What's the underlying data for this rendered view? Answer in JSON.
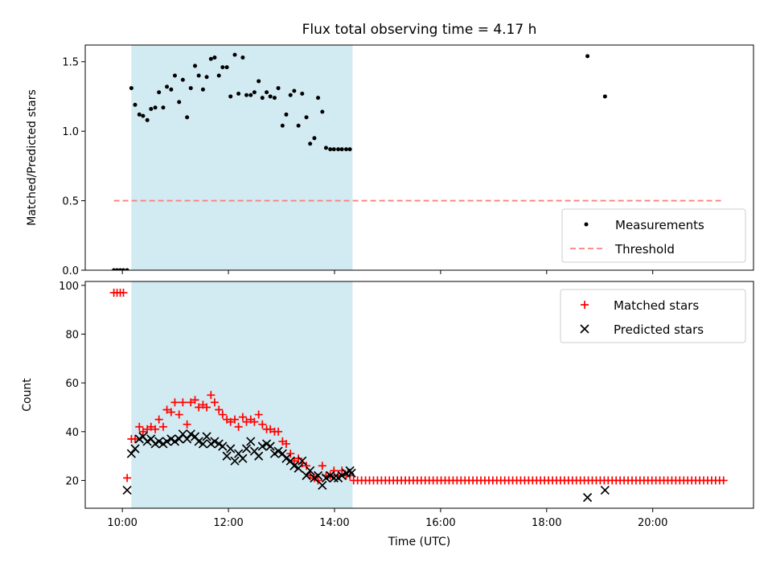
{
  "chart_data": [
    {
      "type": "scatter",
      "title": "Flux total observing time = 4.17 h",
      "xlabel": "",
      "ylabel": "Matched/Predicted stars",
      "ylim": [
        0,
        1.62
      ],
      "yticks": [
        0.0,
        0.5,
        1.0,
        1.5
      ],
      "ytick_labels": [
        "0.0",
        "0.5",
        "1.0",
        "1.5"
      ],
      "xlim_hours": [
        9.3,
        21.9
      ],
      "x_unit": "hours UTC",
      "shaded_interval_hours": [
        10.17,
        14.34
      ],
      "shade_color": "#add8e6",
      "legend_position": "lower-right",
      "series": [
        {
          "name": "Measurements",
          "marker": "dot",
          "color": "#000000",
          "x": [
            9.84,
            9.9,
            9.96,
            10.02,
            10.09,
            10.17,
            10.24,
            10.32,
            10.39,
            10.47,
            10.54,
            10.62,
            10.69,
            10.77,
            10.84,
            10.92,
            10.99,
            11.07,
            11.14,
            11.22,
            11.29,
            11.37,
            11.44,
            11.52,
            11.59,
            11.67,
            11.74,
            11.82,
            11.89,
            11.97,
            12.04,
            12.12,
            12.19,
            12.27,
            12.34,
            12.42,
            12.49,
            12.57,
            12.64,
            12.72,
            12.79,
            12.87,
            12.94,
            13.02,
            13.09,
            13.17,
            13.24,
            13.32,
            13.39,
            13.47,
            13.54,
            13.62,
            13.69,
            13.77,
            13.84,
            13.92,
            13.99,
            14.07,
            14.14,
            14.22,
            14.29,
            18.77,
            19.1
          ],
          "y": [
            0,
            0,
            0,
            0,
            0,
            1.31,
            1.19,
            1.12,
            1.11,
            1.08,
            1.16,
            1.17,
            1.28,
            1.17,
            1.32,
            1.3,
            1.4,
            1.21,
            1.37,
            1.1,
            1.31,
            1.47,
            1.4,
            1.3,
            1.39,
            1.52,
            1.53,
            1.4,
            1.46,
            1.46,
            1.25,
            1.55,
            1.27,
            1.53,
            1.26,
            1.26,
            1.28,
            1.36,
            1.24,
            1.28,
            1.25,
            1.24,
            1.31,
            1.04,
            1.12,
            1.26,
            1.29,
            1.04,
            1.27,
            1.1,
            0.91,
            0.95,
            1.24,
            1.14,
            0.88,
            0.87,
            0.87,
            0.87,
            0.87,
            0.87,
            0.87,
            1.54,
            1.25
          ]
        },
        {
          "name": "Threshold",
          "marker": "dashed-line",
          "color": "#ff7f7f",
          "x": [
            9.84,
            21.34
          ],
          "y": [
            0.5,
            0.5
          ]
        }
      ]
    },
    {
      "type": "scatter",
      "title": "",
      "xlabel": "Time (UTC)",
      "ylabel": "Count",
      "ylim": [
        8.6,
        101.6
      ],
      "yticks": [
        20,
        40,
        60,
        80,
        100
      ],
      "ytick_labels": [
        "20",
        "40",
        "60",
        "80",
        "100"
      ],
      "xlim_hours": [
        9.3,
        21.9
      ],
      "xticks_hours": [
        10,
        12,
        14,
        16,
        18,
        20
      ],
      "xtick_labels": [
        "10:00",
        "12:00",
        "14:00",
        "16:00",
        "18:00",
        "20:00"
      ],
      "shaded_interval_hours": [
        10.17,
        14.34
      ],
      "shade_color": "#add8e6",
      "legend_position": "upper-right",
      "series": [
        {
          "name": "Matched stars",
          "marker": "plus",
          "color": "#ff0000",
          "x": [
            9.84,
            9.9,
            9.96,
            10.02,
            10.09,
            10.17,
            10.24,
            10.32,
            10.39,
            10.47,
            10.54,
            10.62,
            10.69,
            10.77,
            10.84,
            10.92,
            10.99,
            11.07,
            11.14,
            11.22,
            11.29,
            11.37,
            11.44,
            11.52,
            11.59,
            11.67,
            11.74,
            11.82,
            11.89,
            11.97,
            12.04,
            12.12,
            12.19,
            12.27,
            12.34,
            12.42,
            12.49,
            12.57,
            12.64,
            12.72,
            12.79,
            12.87,
            12.94,
            13.02,
            13.09,
            13.17,
            13.24,
            13.32,
            13.39,
            13.47,
            13.54,
            13.62,
            13.69,
            13.77,
            13.84,
            13.92,
            13.99,
            14.07,
            14.14,
            14.22,
            14.29
          ],
          "y": [
            97,
            97,
            97,
            97,
            21,
            37,
            37,
            42,
            40,
            41,
            42,
            41,
            45,
            42,
            49,
            48,
            52,
            47,
            52,
            43,
            52,
            53,
            50,
            51,
            50,
            55,
            52,
            49,
            47,
            45,
            44,
            45,
            42,
            46,
            44,
            45,
            44,
            47,
            43,
            41,
            41,
            40,
            40,
            36,
            35,
            31,
            28,
            29,
            27,
            26,
            22,
            21,
            20,
            26,
            22,
            22,
            24,
            22,
            24,
            22,
            22
          ],
          "tail_x_range": [
            14.36,
            21.34
          ],
          "tail_step": 0.075,
          "tail_value": 20
        },
        {
          "name": "Predicted stars",
          "marker": "cross",
          "color": "#000000",
          "x": [
            10.09,
            10.17,
            10.24,
            10.32,
            10.39,
            10.47,
            10.54,
            10.62,
            10.69,
            10.77,
            10.84,
            10.92,
            10.99,
            11.07,
            11.14,
            11.22,
            11.29,
            11.37,
            11.44,
            11.52,
            11.59,
            11.67,
            11.74,
            11.82,
            11.89,
            11.97,
            12.04,
            12.12,
            12.19,
            12.27,
            12.34,
            12.42,
            12.49,
            12.57,
            12.64,
            12.72,
            12.79,
            12.87,
            12.94,
            13.02,
            13.09,
            13.17,
            13.24,
            13.32,
            13.39,
            13.47,
            13.54,
            13.62,
            13.69,
            13.77,
            13.84,
            13.92,
            13.99,
            14.07,
            14.14,
            14.22,
            14.29,
            14.32,
            18.77,
            19.1
          ],
          "y": [
            16,
            31,
            33,
            37,
            38,
            36,
            37,
            35,
            36,
            35,
            36,
            37,
            36,
            37,
            39,
            37,
            39,
            38,
            36,
            35,
            38,
            35,
            36,
            35,
            34,
            30,
            33,
            28,
            31,
            29,
            33,
            36,
            32,
            30,
            34,
            35,
            34,
            31,
            32,
            31,
            29,
            28,
            26,
            25,
            28,
            22,
            24,
            21,
            22,
            18,
            21,
            22,
            21,
            21,
            22,
            23,
            24,
            23,
            13,
            16
          ]
        }
      ]
    }
  ]
}
